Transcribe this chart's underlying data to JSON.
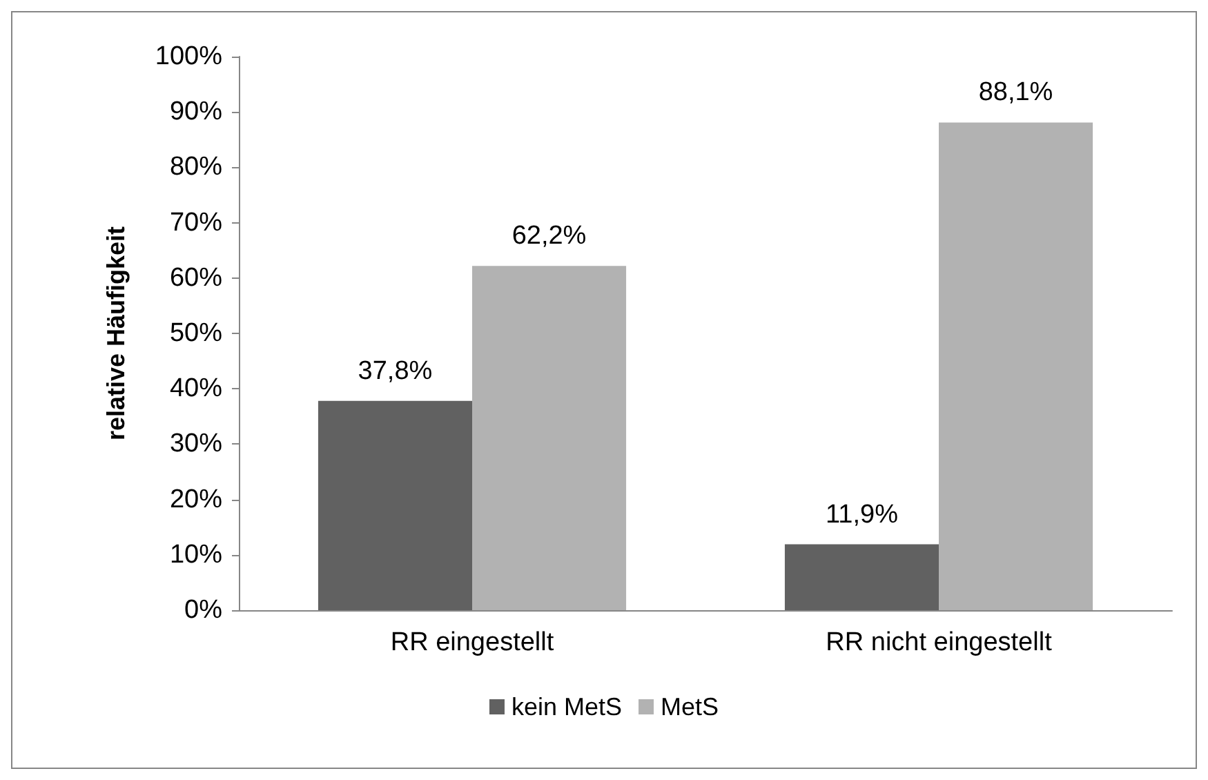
{
  "chart_data": {
    "type": "bar",
    "ylabel": "relative Häufigkeit",
    "categories": [
      "RR eingestellt",
      "RR nicht eingestellt"
    ],
    "series": [
      {
        "name": "kein MetS",
        "color": "#616161",
        "values": [
          37.8,
          11.9
        ],
        "value_labels": [
          "37,8%",
          "11,9%"
        ]
      },
      {
        "name": "MetS",
        "color": "#b2b2b2",
        "values": [
          62.2,
          88.1
        ],
        "value_labels": [
          "62,2%",
          "88,1%"
        ]
      }
    ],
    "ylim": [
      0,
      100
    ],
    "yticks": [
      {
        "value": 0,
        "label": "0%"
      },
      {
        "value": 10,
        "label": "10%"
      },
      {
        "value": 20,
        "label": "20%"
      },
      {
        "value": 30,
        "label": "30%"
      },
      {
        "value": 40,
        "label": "40%"
      },
      {
        "value": 50,
        "label": "50%"
      },
      {
        "value": 60,
        "label": "60%"
      },
      {
        "value": 70,
        "label": "70%"
      },
      {
        "value": 80,
        "label": "80%"
      },
      {
        "value": 90,
        "label": "90%"
      },
      {
        "value": 100,
        "label": "100%"
      }
    ],
    "grid": false,
    "legend": "bottom"
  }
}
